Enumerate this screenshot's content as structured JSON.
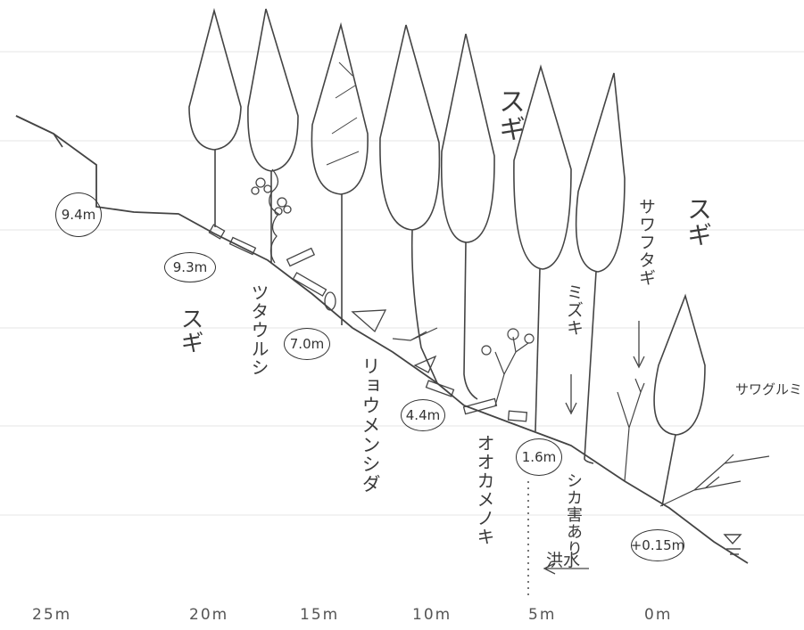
{
  "axis": {
    "ticks": [
      "25m",
      "20m",
      "15m",
      "10m",
      "5m",
      "0m"
    ]
  },
  "elevations": {
    "e1": "9.4m",
    "e2": "9.3m",
    "e3": "7.0m",
    "e4": "4.4m",
    "e5": "1.6m",
    "e6": "+0.15m"
  },
  "labels": {
    "sugi_upper": "スギ",
    "sugi_right": "スギ",
    "sugi_left": "スギ",
    "tsutaurushi": "ツタウルシ",
    "ryoumenshida": "リョウメンシダ",
    "ookameno": "オオカメノキ",
    "mizuki": "ミズキ",
    "sawafutagi": "サワフタギ",
    "sawagurumi": "サワグルミ",
    "shingai": "シカ害あり",
    "kouzui": "洪水"
  },
  "colors": {
    "ink": "#3a3a3a",
    "grid": "#d9d9d9",
    "paper": "#ffffff"
  }
}
